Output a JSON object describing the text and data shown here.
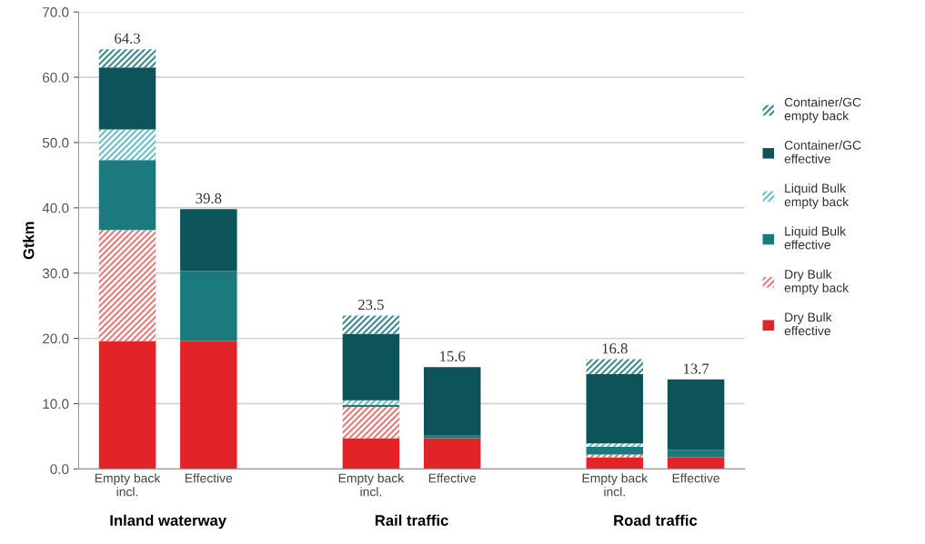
{
  "chart_data": {
    "type": "bar",
    "stacked": true,
    "ylabel": "Gtkm",
    "categories": [
      "Empty back\nincl.",
      "Effective",
      null,
      "Empty back\nincl.",
      "Effective",
      null,
      "Empty back\nincl.",
      "Effective"
    ],
    "series": [
      {
        "name": "Dry Bulk\neffective",
        "color": "#e22428",
        "values": [
          19.6,
          19.6,
          null,
          4.7,
          4.7,
          null,
          1.8,
          1.8
        ]
      },
      {
        "name": "Dry Bulk\nempty back",
        "color": "#e87a7a",
        "values": [
          17.0,
          null,
          null,
          4.8,
          null,
          null,
          0.4,
          null
        ]
      },
      {
        "name": "Liquid Bulk\neffective",
        "color": "#1a7a7e",
        "values": [
          10.7,
          10.7,
          null,
          0.3,
          0.4,
          null,
          1.2,
          1.1
        ]
      },
      {
        "name": "Liquid Bulk\nempty back",
        "color": "#6cc0c8",
        "values": [
          4.7,
          null,
          null,
          0.7,
          null,
          null,
          0.5,
          null
        ]
      },
      {
        "name": "Container/GC\neffective",
        "color": "#0d545a",
        "values": [
          9.5,
          9.5,
          null,
          10.2,
          10.5,
          null,
          10.6,
          10.8
        ]
      },
      {
        "name": "Container/GC\nempty back",
        "color": "#3d8a90",
        "values": [
          2.8,
          null,
          null,
          2.8,
          null,
          null,
          2.3,
          null
        ]
      }
    ],
    "totals": [
      "64.3",
      "39.8",
      null,
      "23.5",
      "15.6",
      null,
      "16.8",
      "13.7"
    ],
    "ylim": [
      0,
      70
    ],
    "yticks": [
      {
        "value": 0,
        "label": "0.0"
      },
      {
        "value": 10,
        "label": "10.0"
      },
      {
        "value": 20,
        "label": "20.0"
      },
      {
        "value": 30,
        "label": "30.0"
      },
      {
        "value": 40,
        "label": "40.0"
      },
      {
        "value": 50,
        "label": "50.0"
      },
      {
        "value": 60,
        "label": "60.0"
      },
      {
        "value": 70,
        "label": "70.0"
      }
    ],
    "grid": "y",
    "legend": "right",
    "annotations": [
      "Inland waterway",
      "Rail traffic",
      "Road traffic"
    ]
  }
}
